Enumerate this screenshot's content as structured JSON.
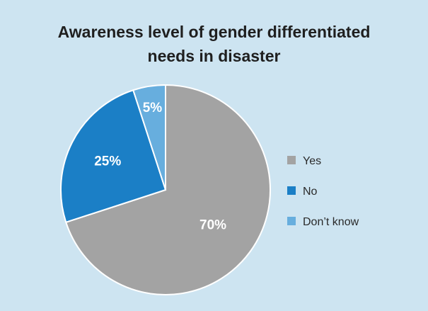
{
  "chart_data": {
    "type": "pie",
    "title_lines": [
      "Awareness level of gender differentiated",
      "needs in disaster"
    ],
    "categories": [
      "Yes",
      "No",
      "Don’t know"
    ],
    "values": [
      70,
      25,
      5
    ],
    "labels": [
      "70%",
      "25%",
      "5%"
    ],
    "colors": [
      "#a3a3a3",
      "#1b7fc6",
      "#67aede"
    ],
    "legend_position": "right",
    "start_angle": "12 o'clock",
    "direction": "clockwise"
  }
}
